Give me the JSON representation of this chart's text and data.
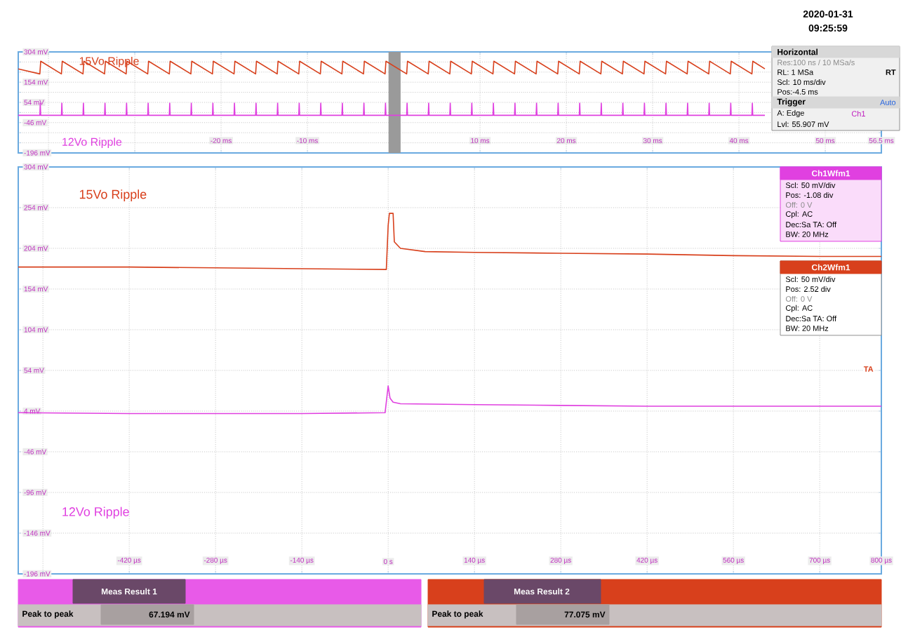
{
  "chart_data": [
    {
      "type": "line",
      "xlim": [
        -43.5,
        56.5
      ],
      "ylim": [
        -196,
        304
      ],
      "grid": true,
      "line_style": "solid",
      "marker": "none",
      "xticks": [
        {
          "value": -40,
          "label": null
        },
        {
          "value": -30,
          "label": null
        },
        {
          "value": -20,
          "label": "-20 ms"
        },
        {
          "value": -10,
          "label": "-10 ms"
        },
        {
          "value": 0,
          "label": null
        },
        {
          "value": 10,
          "label": "10 ms"
        },
        {
          "value": 20,
          "label": "20 ms"
        },
        {
          "value": 30,
          "label": "30 ms"
        },
        {
          "value": 40,
          "label": "40 ms"
        },
        {
          "value": 50,
          "label": "50 ms"
        },
        {
          "value": 56.5,
          "label": "56.5 ms"
        }
      ],
      "yticks": [
        {
          "value": 304,
          "label": "304 mV"
        },
        {
          "value": 254,
          "label": null
        },
        {
          "value": 204,
          "label": null
        },
        {
          "value": 154,
          "label": "154 mV"
        },
        {
          "value": 104,
          "label": null
        },
        {
          "value": 54,
          "label": "54 mV"
        },
        {
          "value": 4,
          "label": null
        },
        {
          "value": -46,
          "label": "-46 mV"
        },
        {
          "value": -96,
          "label": null
        },
        {
          "value": -146,
          "label": null
        },
        {
          "value": -196,
          "label": "-196 mV"
        }
      ],
      "bands": [
        {
          "axis": "x",
          "from": -0.6,
          "to": 0.8,
          "color": "#9a9a9a"
        }
      ],
      "series": [
        {
          "name": "15Vo Ripple",
          "color": "#d8401c",
          "x": [
            -43.5,
            -41,
            -40.9,
            -38.5,
            -38.4,
            -36,
            -35.9,
            -33.5,
            -33.4,
            -31,
            -30.9,
            -28.5,
            -28.4,
            -26,
            -25.9,
            -23.5,
            -23.4,
            -21,
            -20.9,
            -18.5,
            -18.4,
            -16,
            -15.9,
            -13.5,
            -13.4,
            -11,
            -10.9,
            -8.5,
            -8.4,
            -6,
            -5.9,
            -3.5,
            -3.4,
            -1,
            -0.9,
            1.5,
            1.6,
            4,
            4.1,
            6.5,
            6.6,
            9,
            9.1,
            11.5,
            11.6,
            14,
            14.1,
            16.5,
            16.6,
            19,
            19.1,
            21.5,
            21.6,
            24,
            24.1,
            26.5,
            26.6,
            29,
            29.1,
            31.5,
            31.6,
            34,
            34.1,
            36.5,
            36.6,
            39,
            39.1,
            41.5,
            41.6,
            43
          ],
          "values": [
            220,
            195,
            258,
            195,
            258,
            195,
            258,
            195,
            258,
            195,
            258,
            195,
            258,
            195,
            258,
            195,
            258,
            195,
            258,
            195,
            258,
            195,
            258,
            195,
            258,
            195,
            258,
            195,
            258,
            195,
            258,
            195,
            258,
            195,
            258,
            195,
            258,
            195,
            258,
            195,
            258,
            195,
            258,
            195,
            258,
            195,
            258,
            195,
            258,
            195,
            258,
            195,
            258,
            195,
            258,
            195,
            258,
            195,
            258,
            195,
            258,
            195,
            258,
            195,
            258,
            195,
            258,
            195,
            258,
            220
          ]
        },
        {
          "name": "12Vo Ripple",
          "color": "#e040e0",
          "x": [
            -43.5,
            -41,
            -40.95,
            -40.9,
            -38.5,
            -38.45,
            -38.4,
            -36,
            -35.95,
            -35.9,
            -33.5,
            -33.45,
            -33.4,
            -31,
            -30.95,
            -30.9,
            -28.5,
            -28.45,
            -28.4,
            -26,
            -25.95,
            -25.9,
            -23.5,
            -23.45,
            -23.4,
            -21,
            -20.95,
            -20.9,
            -18.5,
            -18.45,
            -18.4,
            -16,
            -15.95,
            -15.9,
            -13.5,
            -13.45,
            -13.4,
            -11,
            -10.95,
            -10.9,
            -8.5,
            -8.45,
            -8.4,
            -6,
            -5.95,
            -5.9,
            -3.5,
            -3.45,
            -3.4,
            -1,
            -0.95,
            -0.9,
            1.5,
            1.55,
            1.6,
            4,
            4.05,
            4.1,
            6.5,
            6.55,
            6.6,
            9,
            9.05,
            9.1,
            11.5,
            11.55,
            11.6,
            14,
            14.05,
            14.1,
            16.5,
            16.55,
            16.6,
            19,
            19.05,
            19.1,
            21.5,
            21.55,
            21.6,
            24,
            24.05,
            24.1,
            26.5,
            26.55,
            26.6,
            29,
            29.05,
            29.1,
            31.5,
            31.55,
            31.6,
            34,
            34.05,
            34.1,
            36.5,
            36.55,
            36.6,
            39,
            39.05,
            39.1,
            41.5,
            41.55,
            41.6,
            43
          ],
          "values": [
            -10,
            -10,
            50,
            -10,
            -10,
            50,
            -10,
            -10,
            50,
            -10,
            -10,
            50,
            -10,
            -10,
            50,
            -10,
            -10,
            50,
            -10,
            -10,
            50,
            -10,
            -10,
            50,
            -10,
            -10,
            50,
            -10,
            -10,
            50,
            -10,
            -10,
            50,
            -10,
            -10,
            50,
            -10,
            -10,
            50,
            -10,
            -10,
            50,
            -10,
            -10,
            50,
            -10,
            -10,
            50,
            -10,
            -10,
            50,
            -10,
            -10,
            50,
            -10,
            -10,
            50,
            -10,
            -10,
            50,
            -10,
            -10,
            50,
            -10,
            -10,
            50,
            -10,
            -10,
            50,
            -10,
            -10,
            50,
            -10,
            -10,
            50,
            -10,
            -10,
            50,
            -10,
            -10,
            50,
            -10,
            -10,
            50,
            -10,
            -10,
            50,
            -10,
            -10,
            50,
            -10,
            -10,
            50,
            -10,
            -10,
            50,
            -10,
            -10,
            50,
            -10,
            -10,
            50,
            -10,
            -10
          ]
        }
      ],
      "annotations": [
        "2020-01-31",
        "09:25:59",
        "Horizontal",
        "Res:100 ns / 10 MSa/s",
        "RL: 1 MSa",
        "RT",
        "Scl: 10 ms/div",
        "Pos:-4.5 ms",
        "Trigger",
        "Auto",
        "A:  Edge",
        "Ch1",
        "Lvl: 55.907 mV"
      ]
    },
    {
      "type": "line",
      "xlim": [
        -600,
        800
      ],
      "ylim": [
        -196,
        304
      ],
      "grid": true,
      "line_style": "solid",
      "marker": "none",
      "xticks": [
        {
          "value": -560,
          "label": null
        },
        {
          "value": -420,
          "label": "-420 µs"
        },
        {
          "value": -280,
          "label": "-280 µs"
        },
        {
          "value": -140,
          "label": "-140 µs"
        },
        {
          "value": 0,
          "label": "0 s"
        },
        {
          "value": 140,
          "label": "140 µs"
        },
        {
          "value": 280,
          "label": "280 µs"
        },
        {
          "value": 420,
          "label": "420 µs"
        },
        {
          "value": 560,
          "label": "560 µs"
        },
        {
          "value": 700,
          "label": "700 µs"
        },
        {
          "value": 800,
          "label": "800 µs"
        }
      ],
      "yticks": [
        {
          "value": 304,
          "label": "304 mV"
        },
        {
          "value": 254,
          "label": "254 mV"
        },
        {
          "value": 204,
          "label": "204 mV"
        },
        {
          "value": 154,
          "label": "154 mV"
        },
        {
          "value": 104,
          "label": "104 mV"
        },
        {
          "value": 54,
          "label": "54 mV"
        },
        {
          "value": 4,
          "label": "4 mV"
        },
        {
          "value": -46,
          "label": "-46 mV"
        },
        {
          "value": -96,
          "label": "-96 mV"
        },
        {
          "value": -146,
          "label": "-146 mV"
        },
        {
          "value": -196,
          "label": "-196 mV"
        }
      ],
      "series": [
        {
          "name": "15Vo Ripple",
          "color": "#d8401c",
          "x": [
            -600,
            -420,
            -280,
            -140,
            -3,
            0,
            2,
            8,
            10,
            20,
            60,
            140,
            280,
            420,
            560,
            700,
            800
          ],
          "values": [
            181,
            181,
            180,
            179,
            178,
            232,
            247,
            247,
            212,
            204,
            200,
            199,
            198,
            197,
            195,
            194,
            194
          ]
        },
        {
          "name": "12Vo Ripple",
          "color": "#e040e0",
          "x": [
            -600,
            -420,
            -280,
            -140,
            -5,
            0,
            3,
            8,
            20,
            140,
            280,
            420,
            800
          ],
          "values": [
            2,
            1,
            1,
            1,
            2,
            35,
            20,
            15,
            13,
            12,
            11,
            10,
            10
          ]
        }
      ],
      "annotations": [
        "Ch1Wfm1",
        "Scl: 50 mV/div",
        "Pos: -1.08 div",
        "Off: 0 V",
        "Cpl: AC",
        "Dec:Sa    TA: Off",
        "BW: 20 MHz",
        "Ch2Wfm1",
        "Scl: 50 mV/div",
        "Pos: 2.52 div",
        "Off: 0 V",
        "Cpl: AC",
        "Dec:Sa    TA: Off",
        "BW: 20 MHz",
        "TA",
        "Meas Result 1",
        "Peak to peak",
        "67.194 mV",
        "Meas Result 2",
        "Peak to peak",
        "77.075 mV"
      ]
    }
  ]
}
